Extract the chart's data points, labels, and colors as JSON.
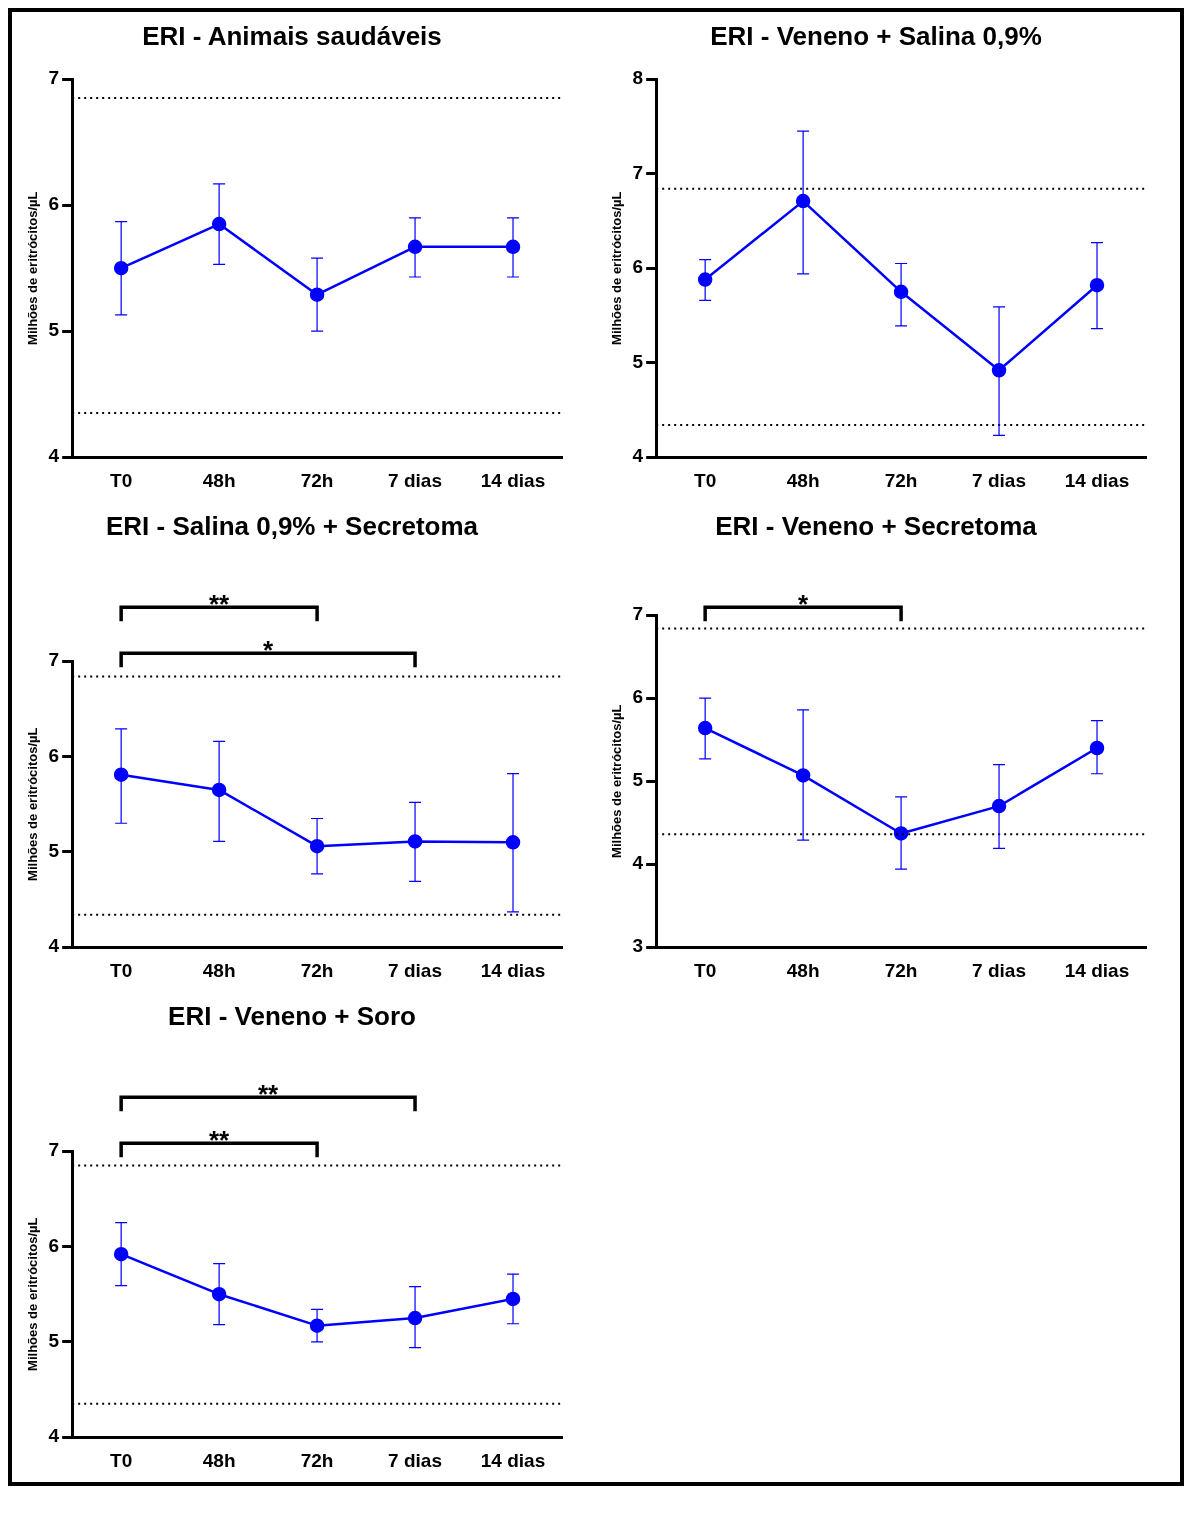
{
  "chart_data": [
    {
      "type": "line",
      "title": "ERI - Animais saudáveis",
      "ylabel": "Milhões de eritrócitos/µL",
      "categories": [
        "T0",
        "48h",
        "72h",
        "7 dias",
        "14 dias"
      ],
      "series": [
        {
          "color": "#0000ff",
          "values": [
            5.5,
            5.85,
            5.29,
            5.67,
            5.67
          ],
          "errors": [
            [
              5.13,
              5.87
            ],
            [
              5.53,
              6.17
            ],
            [
              5.0,
              5.58
            ],
            [
              5.43,
              5.9
            ],
            [
              5.43,
              5.9
            ]
          ]
        }
      ],
      "ylim": [
        4,
        7
      ],
      "yticks": [
        4,
        5,
        6,
        7
      ],
      "ref_lines": [
        {
          "axis": "y",
          "value": 6.85,
          "line_style": "dotted"
        },
        {
          "axis": "y",
          "value": 4.35,
          "line_style": "dotted"
        }
      ],
      "grid": false,
      "legend": false,
      "marker": "circle",
      "line_style": "solid"
    },
    {
      "type": "line",
      "title": "ERI - Veneno + Salina 0,9%",
      "ylabel": "Milhões de eritrócitos/µL",
      "categories": [
        "T0",
        "48h",
        "72h",
        "7 dias",
        "14 dias"
      ],
      "series": [
        {
          "color": "#0000ff",
          "values": [
            5.88,
            6.71,
            5.75,
            4.92,
            5.82
          ],
          "errors": [
            [
              5.66,
              6.09
            ],
            [
              5.94,
              7.45
            ],
            [
              5.39,
              6.05
            ],
            [
              4.23,
              5.59
            ],
            [
              5.36,
              6.27
            ]
          ]
        }
      ],
      "ylim": [
        4,
        8
      ],
      "yticks": [
        4,
        5,
        6,
        7,
        8
      ],
      "ref_lines": [
        {
          "axis": "y",
          "value": 6.84,
          "line_style": "dotted"
        },
        {
          "axis": "y",
          "value": 4.34,
          "line_style": "dotted"
        }
      ],
      "grid": false,
      "legend": false,
      "marker": "circle",
      "line_style": "solid"
    },
    {
      "type": "line",
      "title": "ERI - Salina 0,9% + Secretoma",
      "ylabel": "Milhões de eritrócitos/µL",
      "categories": [
        "T0",
        "48h",
        "72h",
        "7 dias",
        "14 dias"
      ],
      "series": [
        {
          "color": "#0000ff",
          "values": [
            5.81,
            5.65,
            5.06,
            5.11,
            5.1
          ],
          "errors": [
            [
              5.3,
              6.29
            ],
            [
              5.11,
              6.16
            ],
            [
              4.77,
              5.35
            ],
            [
              4.69,
              5.52
            ],
            [
              4.37,
              5.82
            ]
          ]
        }
      ],
      "ylim": [
        4,
        7
      ],
      "yticks": [
        4,
        5,
        6,
        7
      ],
      "ref_lines": [
        {
          "axis": "y",
          "value": 6.84,
          "line_style": "dotted"
        },
        {
          "axis": "y",
          "value": 4.34,
          "line_style": "dotted"
        }
      ],
      "annotations": [
        "**",
        "*"
      ],
      "grid": false,
      "legend": false,
      "marker": "circle",
      "line_style": "solid"
    },
    {
      "type": "line",
      "title": "ERI - Veneno + Secretoma",
      "ylabel": "Milhões de eritrócitos/µL",
      "categories": [
        "T0",
        "48h",
        "72h",
        "7 dias",
        "14 dias"
      ],
      "series": [
        {
          "color": "#0000ff",
          "values": [
            5.64,
            5.07,
            4.37,
            4.7,
            5.4
          ],
          "errors": [
            [
              5.27,
              6.0
            ],
            [
              4.29,
              5.86
            ],
            [
              3.94,
              4.81
            ],
            [
              4.19,
              5.2
            ],
            [
              5.09,
              5.73
            ]
          ]
        }
      ],
      "ylim": [
        3,
        7
      ],
      "yticks": [
        3,
        4,
        5,
        6,
        7
      ],
      "ref_lines": [
        {
          "axis": "y",
          "value": 6.84,
          "line_style": "dotted"
        },
        {
          "axis": "y",
          "value": 4.36,
          "line_style": "dotted"
        }
      ],
      "annotations": [
        "*"
      ],
      "grid": false,
      "legend": false,
      "marker": "circle",
      "line_style": "solid"
    },
    {
      "type": "line",
      "title": "ERI - Veneno + Soro",
      "ylabel": "Milhões de eritrócitos/µL",
      "categories": [
        "T0",
        "48h",
        "72h",
        "7 dias",
        "14 dias"
      ],
      "series": [
        {
          "color": "#0000ff",
          "values": [
            5.92,
            5.5,
            5.17,
            5.25,
            5.45
          ],
          "errors": [
            [
              5.59,
              6.25
            ],
            [
              5.18,
              5.82
            ],
            [
              5.0,
              5.34
            ],
            [
              4.94,
              5.58
            ],
            [
              5.19,
              5.71
            ]
          ]
        }
      ],
      "ylim": [
        4,
        7
      ],
      "yticks": [
        4,
        5,
        6,
        7
      ],
      "ref_lines": [
        {
          "axis": "y",
          "value": 6.85,
          "line_style": "dotted"
        },
        {
          "axis": "y",
          "value": 4.35,
          "line_style": "dotted"
        }
      ],
      "annotations": [
        "**",
        "**"
      ],
      "grid": false,
      "legend": false,
      "marker": "circle",
      "line_style": "solid"
    }
  ]
}
